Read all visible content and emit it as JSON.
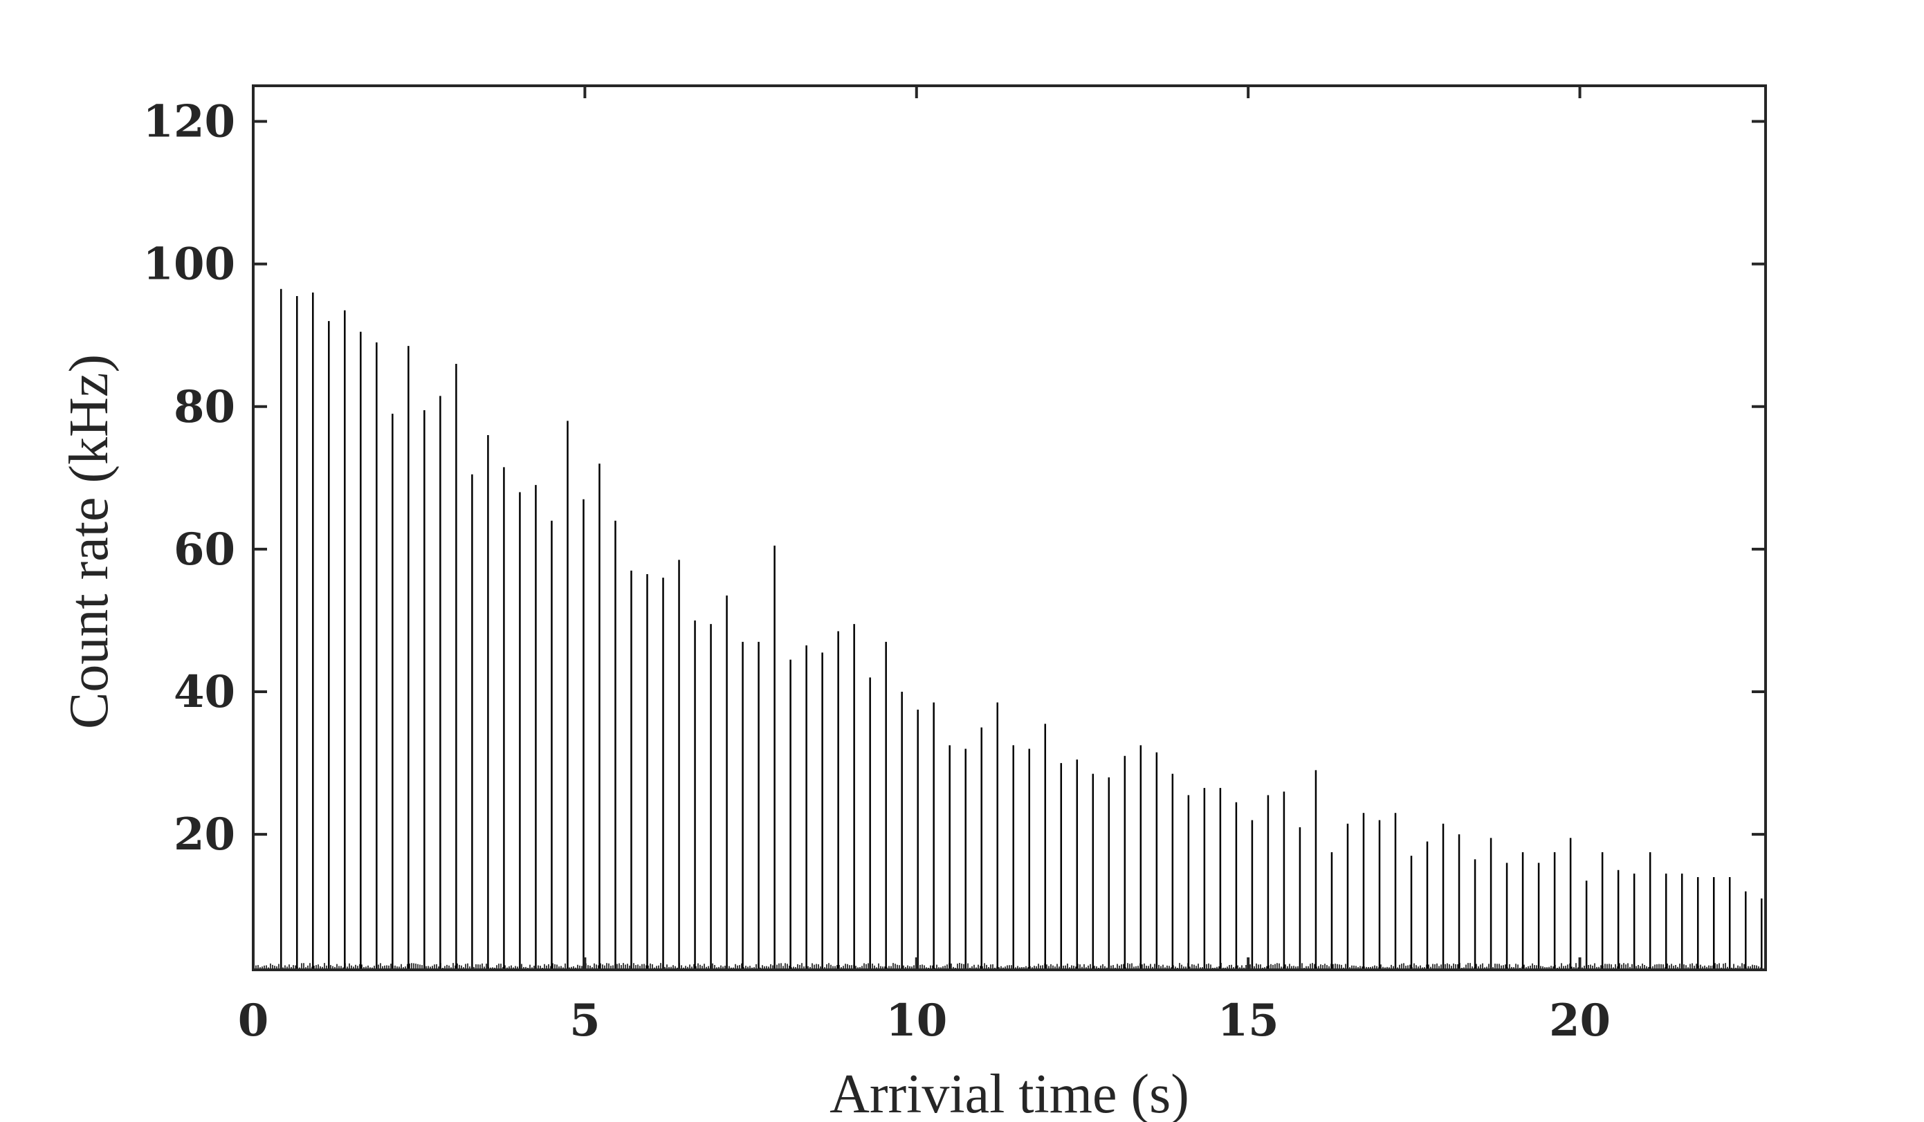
{
  "chart_data": {
    "type": "bar",
    "title": "",
    "xlabel": "Arrivial time (s)",
    "ylabel": "Count rate (kHz)",
    "xlim": [
      0,
      22.8
    ],
    "ylim": [
      1,
      125
    ],
    "xticks": [
      0,
      5,
      10,
      15,
      20
    ],
    "yticks": [
      20,
      40,
      60,
      80,
      100,
      120
    ],
    "grid": false,
    "legend": "none",
    "series": [
      {
        "x": [
          0.42,
          0.66,
          0.9,
          1.14,
          1.38,
          1.62,
          1.86,
          2.1,
          2.34,
          2.58,
          2.82,
          3.06,
          3.3,
          3.54,
          3.78,
          4.02,
          4.26,
          4.5,
          4.74,
          4.98,
          5.22,
          5.46,
          5.7,
          5.94,
          6.18,
          6.42,
          6.66,
          6.9,
          7.14,
          7.38,
          7.62,
          7.86,
          8.1,
          8.34,
          8.58,
          8.82,
          9.06,
          9.3,
          9.54,
          9.78,
          10.02,
          10.26,
          10.5,
          10.74,
          10.98,
          11.22,
          11.46,
          11.7,
          11.94,
          12.18,
          12.42,
          12.66,
          12.9,
          13.14,
          13.38,
          13.62,
          13.86,
          14.1,
          14.34,
          14.58,
          14.82,
          15.06,
          15.3,
          15.54,
          15.78,
          16.02,
          16.26,
          16.5,
          16.74,
          16.98,
          17.22,
          17.46,
          17.7,
          17.94,
          18.18,
          18.42,
          18.66,
          18.9,
          19.14,
          19.38,
          19.62,
          19.86,
          20.1,
          20.34,
          20.58,
          20.82,
          21.06,
          21.3,
          21.54,
          21.78,
          22.02,
          22.26,
          22.5,
          22.74
        ],
        "values": [
          96.5,
          95.5,
          96,
          92,
          93.5,
          90.5,
          89,
          79,
          88.5,
          79.5,
          81.5,
          86,
          70.5,
          76,
          71.5,
          68,
          69,
          64,
          78,
          67,
          72,
          64,
          57,
          56.5,
          56,
          58.5,
          50,
          49.5,
          53.5,
          47,
          47,
          60.5,
          44.5,
          46.5,
          45.5,
          48.5,
          49.5,
          42,
          47,
          40,
          37.5,
          38.5,
          32.5,
          32,
          35,
          38.5,
          32.5,
          32,
          35.5,
          30,
          30.5,
          28.5,
          28,
          31,
          32.5,
          31.5,
          28.5,
          25.5,
          26.5,
          26.5,
          24.5,
          22,
          25.5,
          26,
          21,
          29,
          17.5,
          21.5,
          23,
          22,
          23,
          17,
          19,
          21.5,
          20,
          16.5,
          19.5,
          16,
          17.5,
          16,
          17.5,
          19.5,
          13.5,
          17.5,
          15,
          14.5,
          17.5,
          14.5,
          14.5,
          14,
          14,
          14,
          12,
          11
        ]
      }
    ]
  }
}
